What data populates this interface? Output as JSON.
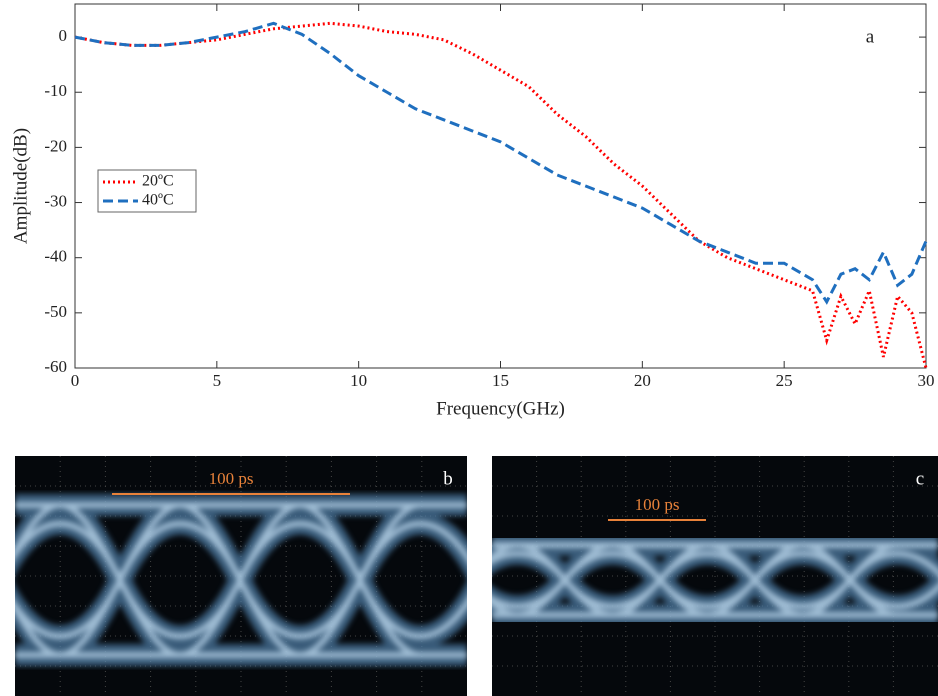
{
  "chart_data": {
    "type": "line",
    "xlabel": "Frequency(GHz)",
    "ylabel": "Amplitude(dB)",
    "annotation": "a",
    "x": [
      0,
      1,
      2,
      3,
      4,
      5,
      6,
      7,
      8,
      9,
      10,
      11,
      12,
      13,
      14,
      15,
      16,
      17,
      18,
      19,
      20,
      21,
      22,
      23,
      24,
      25,
      26,
      26.5,
      27,
      27.5,
      28,
      28.5,
      29,
      29.5,
      30
    ],
    "series": [
      {
        "name": "20ºC",
        "color": "#ff0000",
        "style": "dotted",
        "values": [
          0,
          -1,
          -1.5,
          -1.5,
          -1,
          -0.5,
          0.5,
          1.5,
          2,
          2.5,
          2,
          1,
          0.5,
          -0.5,
          -3,
          -6,
          -9,
          -14,
          -18,
          -23,
          -27,
          -32,
          -37,
          -40,
          -42,
          -44,
          -46,
          -55,
          -47,
          -52,
          -46,
          -58,
          -47,
          -50,
          -60
        ]
      },
      {
        "name": "40ºC",
        "color": "#1f6fbf",
        "style": "dashed",
        "values": [
          0,
          -1,
          -1.5,
          -1.5,
          -1,
          0,
          1,
          2.5,
          0.5,
          -3,
          -7,
          -10,
          -13,
          -15,
          -17,
          -19,
          -22,
          -25,
          -27,
          -29,
          -31,
          -34,
          -37,
          -39,
          -41,
          -41,
          -44,
          -48,
          -43,
          -42,
          -44,
          -39,
          -45,
          -43,
          -37
        ]
      }
    ],
    "xlim": [
      0,
      30
    ],
    "xticks": [
      0,
      5,
      10,
      15,
      20,
      25,
      30
    ],
    "ylim": [
      -60,
      6
    ],
    "yticks": [
      -60,
      -50,
      -40,
      -30,
      -20,
      -10,
      0
    ],
    "legend": "left"
  },
  "panels": [
    {
      "label": "b",
      "scale_text": "100 ps"
    },
    {
      "label": "c",
      "scale_text": "100 ps"
    }
  ]
}
